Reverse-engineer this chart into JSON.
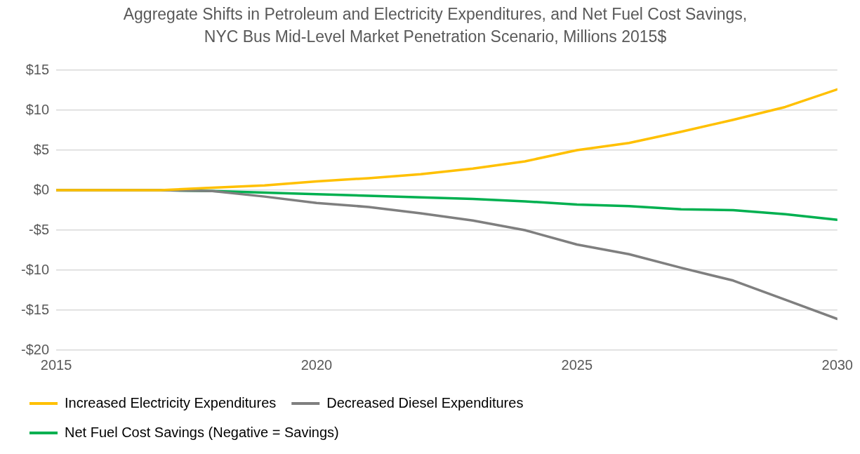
{
  "chart_data": {
    "type": "line",
    "title": "Aggregate Shifts in Petroleum and Electricity Expenditures, and Net Fuel Cost Savings, NYC Bus Mid-Level Market Penetration Scenario, Millions 2015$",
    "x": [
      2015,
      2016,
      2017,
      2018,
      2019,
      2020,
      2021,
      2022,
      2023,
      2024,
      2025,
      2026,
      2027,
      2028,
      2029,
      2030
    ],
    "series": [
      {
        "name": "Increased Electricity Expenditures",
        "color": "#ffc000",
        "values": [
          0,
          0,
          0,
          0.3,
          0.6,
          1.1,
          1.5,
          2.0,
          2.7,
          3.6,
          5.0,
          5.9,
          7.3,
          8.8,
          10.4,
          12.6
        ]
      },
      {
        "name": "Decreased Diesel Expenditures",
        "color": "#7f7f7f",
        "values": [
          0,
          0,
          0,
          -0.1,
          -0.8,
          -1.6,
          -2.1,
          -2.9,
          -3.8,
          -5.0,
          -6.8,
          -8.0,
          -9.7,
          -11.3,
          -13.7,
          -16.1
        ]
      },
      {
        "name": "Net Fuel Cost Savings (Negative = Savings)",
        "color": "#00b050",
        "values": [
          0,
          0,
          0,
          -0.1,
          -0.3,
          -0.5,
          -0.7,
          -0.9,
          -1.1,
          -1.4,
          -1.8,
          -2.0,
          -2.4,
          -2.5,
          -3.0,
          -3.7
        ]
      }
    ],
    "xlim": [
      2015,
      2030
    ],
    "xticks": [
      2015,
      2020,
      2025,
      2030
    ],
    "ylim": [
      -20,
      15
    ],
    "yticks": [
      {
        "value": -20,
        "label": "-$20"
      },
      {
        "value": -15,
        "label": "-$15"
      },
      {
        "value": -10,
        "label": "-$10"
      },
      {
        "value": -5,
        "label": "-$5"
      },
      {
        "value": 0,
        "label": "$0"
      },
      {
        "value": 5,
        "label": "$5"
      },
      {
        "value": 10,
        "label": "$10"
      },
      {
        "value": 15,
        "label": "$15"
      }
    ],
    "grid": "y",
    "legend": "bottom",
    "marker": "none",
    "line_style": "solid"
  }
}
